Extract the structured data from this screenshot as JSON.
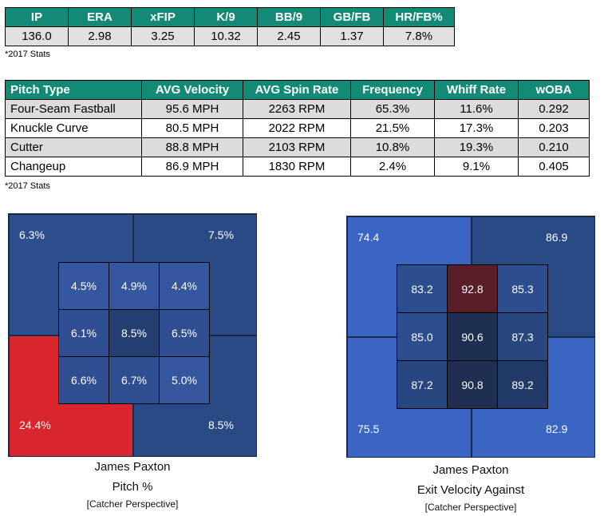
{
  "stats_table": {
    "headers": [
      "IP",
      "ERA",
      "xFIP",
      "K/9",
      "BB/9",
      "GB/FB",
      "HR/FB%"
    ],
    "values": [
      "136.0",
      "2.98",
      "3.25",
      "10.32",
      "2.45",
      "1.37",
      "7.8%"
    ],
    "footnote": "*2017 Stats"
  },
  "pitch_table": {
    "headers": [
      "Pitch Type",
      "AVG Velocity",
      "AVG Spin Rate",
      "Frequency",
      "Whiff Rate",
      "wOBA"
    ],
    "rows": [
      [
        "Four-Seam Fastball",
        "95.6 MPH",
        "2263 RPM",
        "65.3%",
        "11.6%",
        "0.292"
      ],
      [
        "Knuckle Curve",
        "80.5 MPH",
        "2022 RPM",
        "21.5%",
        "17.3%",
        "0.203"
      ],
      [
        "Cutter",
        "88.8 MPH",
        "2103 RPM",
        "10.8%",
        "19.3%",
        "0.210"
      ],
      [
        "Changeup",
        "86.9 MPH",
        "1830 RPM",
        "2.4%",
        "9.1%",
        "0.405"
      ]
    ],
    "footnote": "*2017 Stats"
  },
  "pitch_pct_zone": {
    "outer": {
      "top_left": "6.3%",
      "top_right": "7.5%",
      "bottom_left": "24.4%",
      "bottom_right": "8.5%"
    },
    "inner": [
      [
        "4.5%",
        "4.9%",
        "4.4%"
      ],
      [
        "6.1%",
        "8.5%",
        "6.5%"
      ],
      [
        "6.6%",
        "6.7%",
        "5.0%"
      ]
    ],
    "caption_name": "James Paxton",
    "caption_title": "Pitch %",
    "caption_perspective": "[Catcher Perspective]",
    "colors": {
      "outer_top_left": "#2e4f8e",
      "outer_top_right": "#2a4a86",
      "outer_bottom_left": "#d9262c",
      "outer_bottom_right": "#2a4a86",
      "inner": [
        [
          "#3557a0",
          "#3557a0",
          "#3557a0"
        ],
        [
          "#2f4f92",
          "#253f73",
          "#2f4f92"
        ],
        [
          "#2f4f92",
          "#2f4f92",
          "#3557a0"
        ]
      ]
    }
  },
  "exit_velo_zone": {
    "outer": {
      "top_left": "74.4",
      "top_right": "86.9",
      "bottom_left": "75.5",
      "bottom_right": "82.9"
    },
    "inner": [
      [
        "83.2",
        "92.8",
        "85.3"
      ],
      [
        "85.0",
        "90.6",
        "87.3"
      ],
      [
        "87.2",
        "90.8",
        "89.2"
      ]
    ],
    "caption_name": "James Paxton",
    "caption_title": "Exit Velocity Against",
    "caption_perspective": "[Catcher Perspective]",
    "colors": {
      "outer_top_left": "#3a65c2",
      "outer_top_right": "#2a4a86",
      "outer_bottom_left": "#3a65c2",
      "outer_bottom_right": "#3a65c2",
      "inner": [
        [
          "#2c4d8f",
          "#5a1e28",
          "#2c4d8f"
        ],
        [
          "#2c4d8f",
          "#1e2f52",
          "#28467f"
        ],
        [
          "#28467f",
          "#1e2f52",
          "#223a68"
        ]
      ]
    }
  }
}
